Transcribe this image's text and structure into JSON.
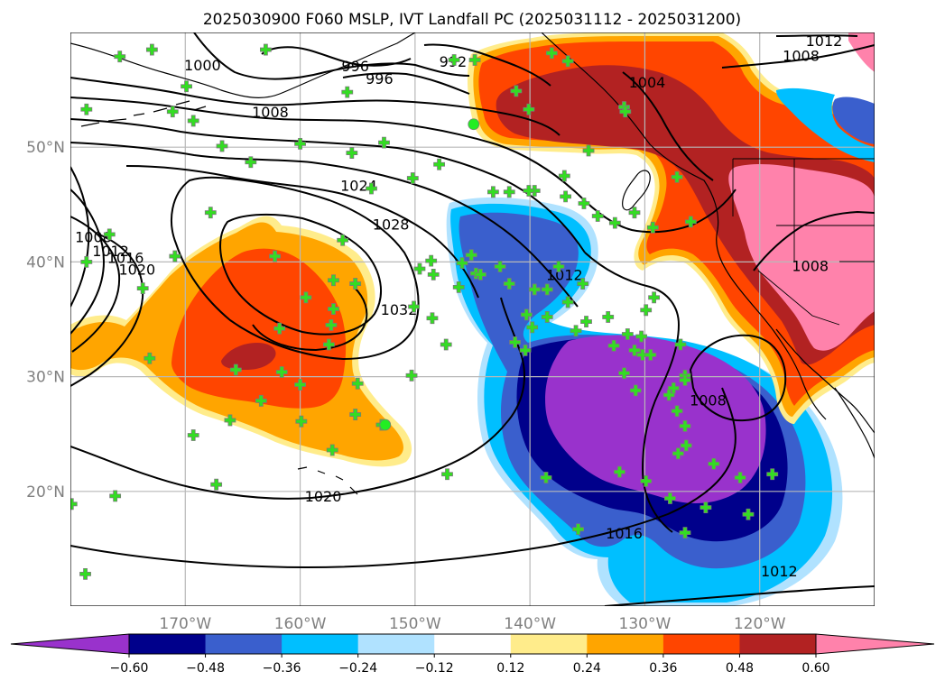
{
  "chart_data": {
    "type": "contour-map",
    "title": "2025030900 F060 MSLP, IVT Landfall PC (2025031112 - 2025031200)",
    "map_extent": {
      "lon": [
        -180,
        -110
      ],
      "lat": [
        10,
        60
      ]
    },
    "lon_ticks": [
      {
        "value": -170,
        "label": "170°W"
      },
      {
        "value": -160,
        "label": "160°W"
      },
      {
        "value": -150,
        "label": "150°W"
      },
      {
        "value": -140,
        "label": "140°W"
      },
      {
        "value": -130,
        "label": "130°W"
      },
      {
        "value": -120,
        "label": "120°W"
      }
    ],
    "lat_ticks": [
      {
        "value": 50,
        "label": "50°N"
      },
      {
        "value": 40,
        "label": "40°N"
      },
      {
        "value": 30,
        "label": "30°N"
      },
      {
        "value": 20,
        "label": "20°N"
      }
    ],
    "grid": true,
    "colorbar": {
      "orientation": "horizontal",
      "extend": "both",
      "levels": [
        -0.72,
        -0.6,
        -0.48,
        -0.36,
        -0.24,
        -0.12,
        0.12,
        0.24,
        0.36,
        0.48,
        0.6,
        0.72
      ],
      "colors": [
        "#9932cc",
        "#00008b",
        "#3a5fcd",
        "#00bfff",
        "#b0e2ff",
        "#ffffff",
        "#ffec8b",
        "#ffa500",
        "#ff4500",
        "#b22222",
        "#ff82ab"
      ],
      "tick_labels": [
        "-0.60",
        "-0.48",
        "-0.36",
        "-0.24",
        "-0.12",
        "0.12",
        "0.24",
        "0.36",
        "0.48",
        "0.60"
      ]
    },
    "isobar_labels": [
      {
        "value": 1000,
        "lon": -168.5,
        "lat": 57.1
      },
      {
        "value": 996,
        "lon": -155.2,
        "lat": 57.0
      },
      {
        "value": 996,
        "lon": -153.1,
        "lat": 55.9
      },
      {
        "value": 992,
        "lon": -146.7,
        "lat": 57.4
      },
      {
        "value": 1008,
        "lon": -162.6,
        "lat": 53.0
      },
      {
        "value": 1024,
        "lon": -154.9,
        "lat": 46.6
      },
      {
        "value": 1028,
        "lon": -152.1,
        "lat": 43.2
      },
      {
        "value": 1032,
        "lon": -151.4,
        "lat": 35.8
      },
      {
        "value": 1008,
        "lon": -178.0,
        "lat": 42.1
      },
      {
        "value": 1012,
        "lon": -176.5,
        "lat": 40.9
      },
      {
        "value": 1016,
        "lon": -175.2,
        "lat": 40.3
      },
      {
        "value": 1020,
        "lon": -174.2,
        "lat": 39.3
      },
      {
        "value": 1012,
        "lon": -137.0,
        "lat": 38.8
      },
      {
        "value": 1020,
        "lon": -158.0,
        "lat": 19.5
      },
      {
        "value": 1016,
        "lon": -131.8,
        "lat": 16.3
      },
      {
        "value": 1008,
        "lon": -124.5,
        "lat": 27.9
      },
      {
        "value": 1008,
        "lon": -115.6,
        "lat": 39.6
      },
      {
        "value": 1012,
        "lon": -114.4,
        "lat": 59.2
      },
      {
        "value": 1008,
        "lon": -116.4,
        "lat": 57.9
      },
      {
        "value": 1004,
        "lon": -129.8,
        "lat": 55.6
      },
      {
        "value": 1012,
        "lon": -118.3,
        "lat": 13.0
      }
    ]
  }
}
